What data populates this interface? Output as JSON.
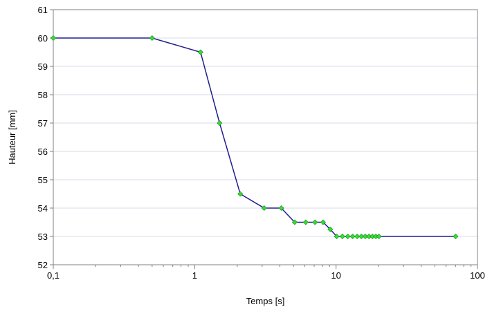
{
  "chart_data": {
    "type": "line",
    "title": "",
    "xlabel": "Temps [s]",
    "ylabel": "Hauteur [mm]",
    "x_scale": "log",
    "xlim": [
      0.1,
      100
    ],
    "ylim": [
      52,
      61
    ],
    "x_ticks": [
      0.1,
      1,
      10,
      100
    ],
    "x_tick_labels": [
      "0,1",
      "1",
      "10",
      "100"
    ],
    "y_ticks": [
      52,
      53,
      54,
      55,
      56,
      57,
      58,
      59,
      60,
      61
    ],
    "y_tick_labels": [
      "52",
      "53",
      "54",
      "55",
      "56",
      "57",
      "58",
      "59",
      "60",
      "61"
    ],
    "grid": "horizontal",
    "line_color": "#1f1f8f",
    "marker_color": "#33dd33",
    "series": [
      {
        "x": [
          0.1,
          0.5,
          1.1,
          1.5,
          2.1,
          3.1,
          4.1,
          5.1,
          6.1,
          7.1,
          8.1,
          9.1,
          10.1,
          11.1,
          12.1,
          13.1,
          14.1,
          15.1,
          16.1,
          17.1,
          18.1,
          19.1,
          20.1,
          70
        ],
        "y": [
          60,
          60,
          59.5,
          57,
          54.5,
          54,
          54,
          53.5,
          53.5,
          53.5,
          53.5,
          53.25,
          53,
          53,
          53,
          53,
          53,
          53,
          53,
          53,
          53,
          53,
          53,
          53
        ]
      }
    ]
  }
}
